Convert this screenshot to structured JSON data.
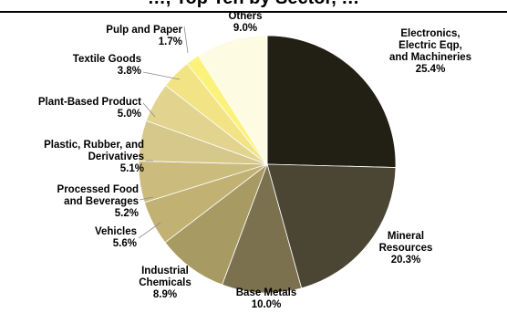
{
  "header_fragment": "…, Top Ten by Sector, …",
  "chart_data": {
    "type": "pie",
    "start_angle_deg": 0,
    "direction": "clockwise",
    "slices": [
      {
        "label_lines": [
          "Electronics,",
          "Electric Eqp,",
          "and Machineries"
        ],
        "value": 25.4,
        "display": "25.4%",
        "color": "#221f15"
      },
      {
        "label_lines": [
          "Mineral",
          "Resources"
        ],
        "value": 20.3,
        "display": "20.3%",
        "color": "#4b4533"
      },
      {
        "label_lines": [
          "Base Metals"
        ],
        "value": 10.0,
        "display": "10.0%",
        "color": "#7c714f"
      },
      {
        "label_lines": [
          "Industrial",
          "Chemicals"
        ],
        "value": 8.9,
        "display": "8.9%",
        "color": "#a89a63"
      },
      {
        "label_lines": [
          "Vehicles"
        ],
        "value": 5.6,
        "display": "5.6%",
        "color": "#c1b173"
      },
      {
        "label_lines": [
          "Processed Food",
          "and Beverages"
        ],
        "value": 5.2,
        "display": "5.2%",
        "color": "#cbbc7e"
      },
      {
        "label_lines": [
          "Plastic, Rubber, and",
          "Derivatives"
        ],
        "value": 5.1,
        "display": "5.1%",
        "color": "#d6c78a"
      },
      {
        "label_lines": [
          "Plant-Based Product"
        ],
        "value": 5.0,
        "display": "5.0%",
        "color": "#e2d48f"
      },
      {
        "label_lines": [
          "Textile Goods"
        ],
        "value": 3.8,
        "display": "3.8%",
        "color": "#f2e385"
      },
      {
        "label_lines": [
          "Pulp and Paper"
        ],
        "value": 1.7,
        "display": "1.7%",
        "color": "#fbf27b"
      },
      {
        "label_lines": [
          "Others"
        ],
        "value": 9.0,
        "display": "9.0%",
        "color": "#fdfbe2"
      }
    ]
  }
}
